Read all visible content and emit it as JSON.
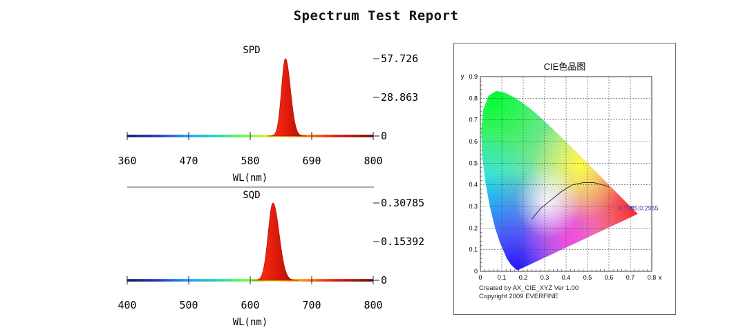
{
  "page_title": "Spectrum Test Report",
  "colors": {
    "peak_red": "#e01a0c",
    "axis": "#222222",
    "divider": "#777777",
    "cie_grid": "#333333",
    "cie_point_label": "#3a43b8"
  },
  "chart_data": [
    {
      "id": "spd",
      "type": "area",
      "title": "SPD",
      "xlabel": "WL(nm)",
      "x_ticks": [
        "360",
        "470",
        "580",
        "690",
        "800"
      ],
      "xlim": [
        360,
        800
      ],
      "y_ticks": [
        "57.726",
        "28.863",
        "0"
      ],
      "ylim": [
        0,
        57.726
      ],
      "peak_wavelength_nm": 643,
      "peak_value": 57.726,
      "peak_fwhm_nm": 18
    },
    {
      "id": "sqd",
      "type": "area",
      "title": "SQD",
      "xlabel": "WL(nm)",
      "x_ticks": [
        "400",
        "500",
        "600",
        "700",
        "800"
      ],
      "xlim": [
        400,
        800
      ],
      "y_ticks": [
        "0.30785",
        "0.15392",
        "0"
      ],
      "ylim": [
        0,
        0.30785
      ],
      "peak_wavelength_nm": 637,
      "peak_value": 0.30785,
      "peak_fwhm_nm": 20
    },
    {
      "id": "cie",
      "type": "scatter",
      "title": "CIE色品图",
      "xlabel": "x",
      "ylabel": "y",
      "x_ticks": [
        "0",
        "0.1",
        "0.2",
        "0.3",
        "0.4",
        "0.5",
        "0.6",
        "0.7",
        "0.8"
      ],
      "y_ticks": [
        "0",
        "0.1",
        "0.2",
        "0.3",
        "0.4",
        "0.5",
        "0.6",
        "0.7",
        "0.8",
        "0.9"
      ],
      "xlim": [
        0,
        0.8
      ],
      "ylim": [
        0,
        0.9
      ],
      "grid": true,
      "point": {
        "x": 0.7035,
        "y": 0.2955,
        "label": "0.7035,0.2955"
      },
      "planckian_locus": [
        [
          0.24,
          0.24
        ],
        [
          0.28,
          0.29
        ],
        [
          0.33,
          0.33
        ],
        [
          0.38,
          0.37
        ],
        [
          0.43,
          0.4
        ],
        [
          0.48,
          0.41
        ],
        [
          0.53,
          0.41
        ],
        [
          0.57,
          0.4
        ],
        [
          0.6,
          0.39
        ]
      ],
      "spectral_locus": [
        [
          0.1741,
          0.005
        ],
        [
          0.1738,
          0.0049
        ],
        [
          0.1666,
          0.0089
        ],
        [
          0.144,
          0.0297
        ],
        [
          0.1241,
          0.0578
        ],
        [
          0.0913,
          0.1327
        ],
        [
          0.0687,
          0.2007
        ],
        [
          0.0454,
          0.295
        ],
        [
          0.0235,
          0.4127
        ],
        [
          0.0082,
          0.5384
        ],
        [
          0.0039,
          0.6548
        ],
        [
          0.0139,
          0.7502
        ],
        [
          0.0389,
          0.812
        ],
        [
          0.0743,
          0.8338
        ],
        [
          0.1142,
          0.8262
        ],
        [
          0.1547,
          0.8059
        ],
        [
          0.1929,
          0.7816
        ],
        [
          0.2296,
          0.7543
        ],
        [
          0.2658,
          0.7243
        ],
        [
          0.3016,
          0.6923
        ],
        [
          0.3373,
          0.6589
        ],
        [
          0.3731,
          0.6245
        ],
        [
          0.4087,
          0.5896
        ],
        [
          0.4441,
          0.5547
        ],
        [
          0.4788,
          0.5202
        ],
        [
          0.5125,
          0.4866
        ],
        [
          0.5448,
          0.4544
        ],
        [
          0.5752,
          0.4242
        ],
        [
          0.6029,
          0.3965
        ],
        [
          0.627,
          0.3725
        ],
        [
          0.6482,
          0.3514
        ],
        [
          0.6658,
          0.334
        ],
        [
          0.6801,
          0.3197
        ],
        [
          0.6915,
          0.3083
        ],
        [
          0.7006,
          0.2993
        ],
        [
          0.7347,
          0.2653
        ]
      ],
      "footer_line1": "Created by AX_CIE_XYZ Ver 1.00",
      "footer_line2": "Copyright 2009 EVERFINE"
    }
  ]
}
